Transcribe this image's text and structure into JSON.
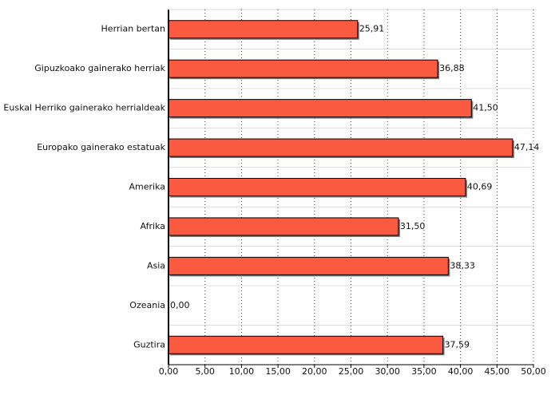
{
  "chart_data": {
    "type": "hbar",
    "categories": [
      "Herrian bertan",
      "Gipuzkoako gainerako herriak",
      "Euskal Herriko gainerako herrialdeak",
      "Europako gainerako estatuak",
      "Amerika",
      "Afrika",
      "Asia",
      "Ozeania",
      "Guztira"
    ],
    "values": [
      25.91,
      36.88,
      41.5,
      47.14,
      40.69,
      31.5,
      38.33,
      0.0,
      37.59
    ],
    "value_labels": [
      "25,91",
      "36,88",
      "41,50",
      "47,14",
      "40,69",
      "31,50",
      "38,33",
      "0,00",
      "37,59"
    ],
    "color": "#fa5a40",
    "xlim": [
      0,
      50
    ],
    "xticks": [
      {
        "value": 0,
        "label": "0,00"
      },
      {
        "value": 5,
        "label": "5,00"
      },
      {
        "value": 10,
        "label": "10,00"
      },
      {
        "value": 15,
        "label": "15,00"
      },
      {
        "value": 20,
        "label": "20,00"
      },
      {
        "value": 25,
        "label": "25,00"
      },
      {
        "value": 30,
        "label": "30,00"
      },
      {
        "value": 35,
        "label": "35,00"
      },
      {
        "value": 40,
        "label": "40,00"
      },
      {
        "value": 45,
        "label": "45,00"
      },
      {
        "value": 50,
        "label": "50,00"
      }
    ],
    "grid": true
  }
}
